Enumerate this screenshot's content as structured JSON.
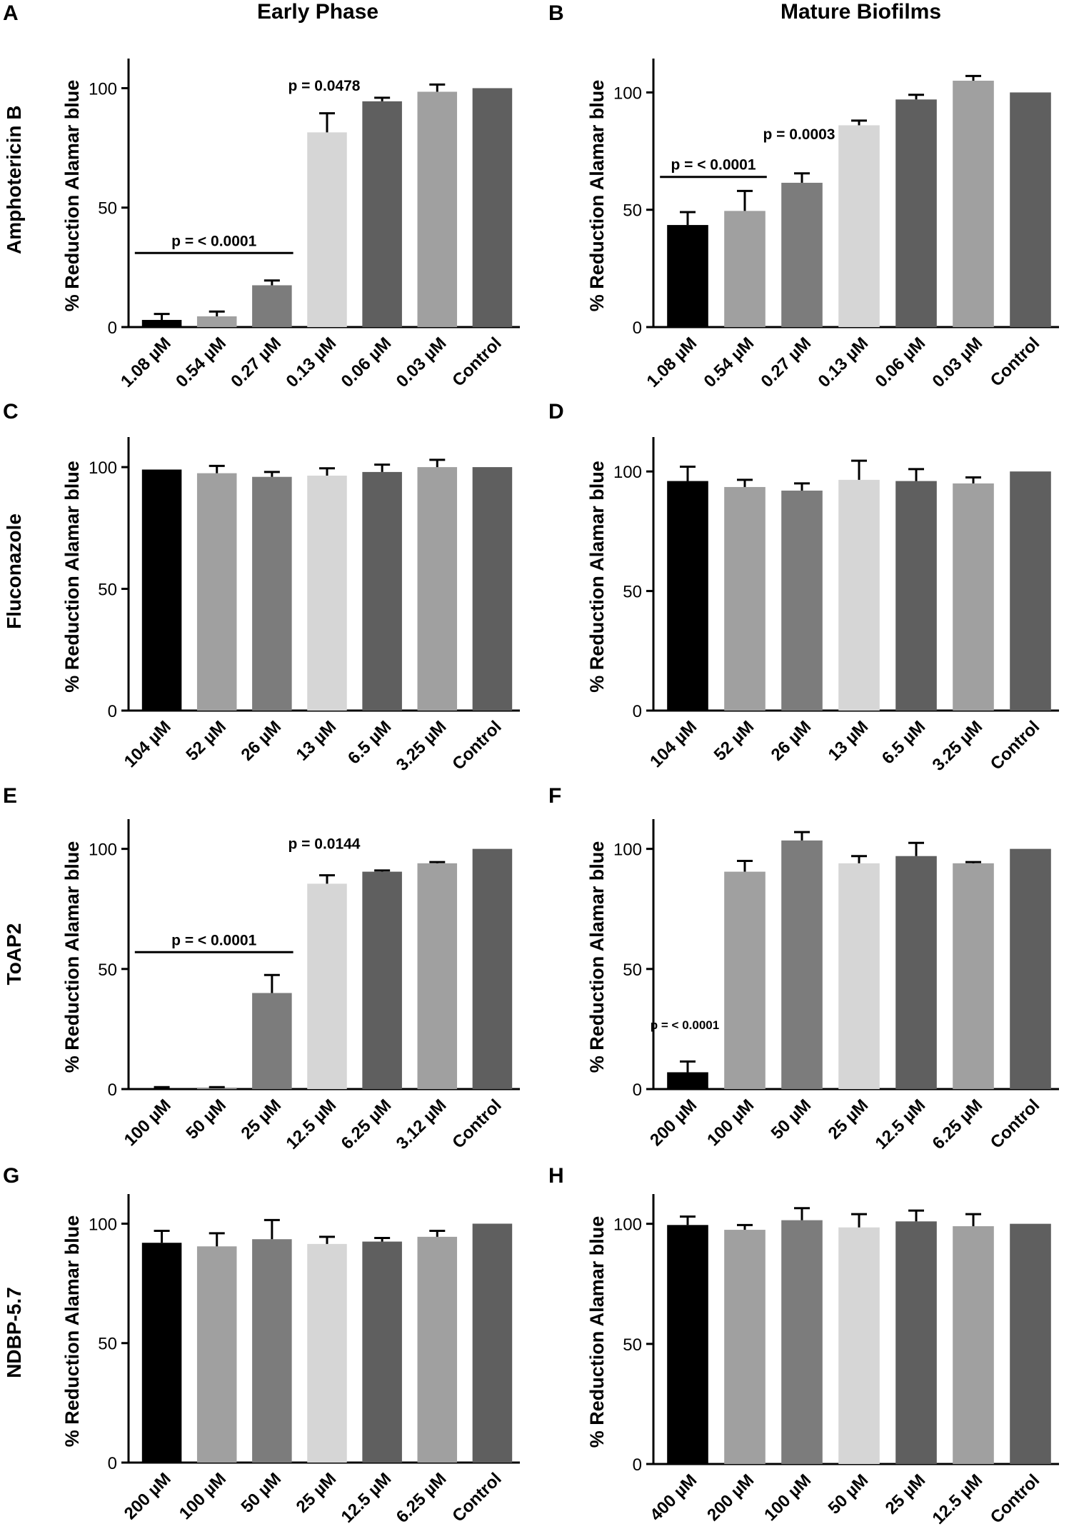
{
  "headers": {
    "left": "Early Phase",
    "right": "Mature Biofilms"
  },
  "row_labels": [
    "Amphotericin B",
    "Fluconazole",
    "ToAP2",
    "NDBP-5.7"
  ],
  "colors": {
    "black": "#000000",
    "light": "#d6d6d6",
    "mid": "#a0a0a0",
    "dark": "#7c7c7c",
    "darker": "#5f5f5f"
  },
  "chart_data": [
    {
      "panel": "A",
      "type": "bar",
      "ylabel": "% Reduction Alamar blue",
      "ylim": [
        0,
        110
      ],
      "yticks": [
        0,
        50,
        100
      ],
      "categories": [
        "1.08 µM",
        "0.54 µM",
        "0.27 µM",
        "0.13 µM",
        "0.06 µM",
        "0.03 µM",
        "Control"
      ],
      "values": [
        3,
        4.5,
        17.5,
        81.5,
        94.5,
        98.5,
        100
      ],
      "errors": [
        2.5,
        2,
        2,
        8,
        1.5,
        3,
        0
      ],
      "fills": [
        "#000000",
        "#a0a0a0",
        "#7c7c7c",
        "#d6d6d6",
        "#5f5f5f",
        "#a0a0a0",
        "#5f5f5f"
      ],
      "annotations": [
        {
          "text": "p = < 0.0001",
          "bar": true,
          "from": 0,
          "to": 2,
          "y": 31
        },
        {
          "text": "p = 0.0478",
          "bar": false,
          "from": 3,
          "to": 3,
          "y": 96
        }
      ]
    },
    {
      "panel": "B",
      "type": "bar",
      "ylabel": "% Reduction Alamar blue",
      "ylim": [
        0,
        112
      ],
      "yticks": [
        0,
        50,
        100
      ],
      "categories": [
        "1.08 µM",
        "0.54 µM",
        "0.27 µM",
        "0.13 µM",
        "0.06 µM",
        "0.03 µM",
        "Control"
      ],
      "values": [
        43.5,
        49.5,
        61.5,
        86,
        97,
        105,
        100
      ],
      "errors": [
        5.5,
        8.5,
        4,
        2,
        2,
        2,
        0
      ],
      "fills": [
        "#000000",
        "#a0a0a0",
        "#7c7c7c",
        "#d6d6d6",
        "#5f5f5f",
        "#a0a0a0",
        "#5f5f5f"
      ],
      "annotations": [
        {
          "text": "p = < 0.0001",
          "bar": true,
          "from": 0,
          "to": 1,
          "y": 64
        },
        {
          "text": "p = 0.0003",
          "bar": false,
          "from": 2,
          "to": 2,
          "y": 77
        }
      ]
    },
    {
      "panel": "C",
      "type": "bar",
      "ylabel": "% Reduction Alamar blue",
      "ylim": [
        0,
        110
      ],
      "yticks": [
        0,
        50,
        100
      ],
      "categories": [
        "104 µM",
        "52 µM",
        "26 µM",
        "13 µM",
        "6.5 µM",
        "3.25 µM",
        "Control"
      ],
      "values": [
        99,
        97.5,
        96,
        96.5,
        98,
        100,
        100
      ],
      "errors": [
        0,
        3,
        2,
        3,
        3,
        3,
        0
      ],
      "fills": [
        "#000000",
        "#a0a0a0",
        "#7c7c7c",
        "#d6d6d6",
        "#5f5f5f",
        "#a0a0a0",
        "#5f5f5f"
      ],
      "annotations": []
    },
    {
      "panel": "D",
      "type": "bar",
      "ylabel": "% Reduction Alamar blue",
      "ylim": [
        0,
        112
      ],
      "yticks": [
        0,
        50,
        100
      ],
      "categories": [
        "104 µM",
        "52 µM",
        "26 µM",
        "13 µM",
        "6.5 µM",
        "3.25 µM",
        "Control"
      ],
      "values": [
        96,
        93.5,
        92,
        96.5,
        96,
        95,
        100
      ],
      "errors": [
        6,
        3,
        3,
        8,
        5,
        2.5,
        0
      ],
      "fills": [
        "#000000",
        "#a0a0a0",
        "#7c7c7c",
        "#d6d6d6",
        "#5f5f5f",
        "#a0a0a0",
        "#5f5f5f"
      ],
      "annotations": []
    },
    {
      "panel": "E",
      "type": "bar",
      "ylabel": "% Reduction Alamar blue",
      "ylim": [
        0,
        110
      ],
      "yticks": [
        0,
        50,
        100
      ],
      "categories": [
        "100 µM",
        "50 µM",
        "25 µM",
        "12.5 µM",
        "6.25 µM",
        "3.12 µM",
        "Control"
      ],
      "values": [
        0.3,
        0.3,
        40,
        85.5,
        90.5,
        94,
        100
      ],
      "errors": [
        0.5,
        0.5,
        7.5,
        3.5,
        0.5,
        0.5,
        0
      ],
      "fills": [
        "#000000",
        "#a0a0a0",
        "#7c7c7c",
        "#d6d6d6",
        "#5f5f5f",
        "#a0a0a0",
        "#5f5f5f"
      ],
      "annotations": [
        {
          "text": "p = < 0.0001",
          "bar": true,
          "from": 0,
          "to": 2,
          "y": 57
        },
        {
          "text": "p = 0.0144",
          "bar": false,
          "from": 3,
          "to": 3,
          "y": 97
        }
      ]
    },
    {
      "panel": "F",
      "type": "bar",
      "ylabel": "% Reduction Alamar blue",
      "ylim": [
        0,
        110
      ],
      "yticks": [
        0,
        50,
        100
      ],
      "categories": [
        "200 µM",
        "100 µM",
        "50 µM",
        "25 µM",
        "12.5 µM",
        "6.25 µM",
        "Control"
      ],
      "values": [
        7,
        90.5,
        103.5,
        94,
        97,
        94,
        100
      ],
      "errors": [
        4.5,
        4.5,
        3.5,
        3,
        5.5,
        0.5,
        0
      ],
      "fills": [
        "#000000",
        "#a0a0a0",
        "#7c7c7c",
        "#d6d6d6",
        "#5f5f5f",
        "#a0a0a0",
        "#5f5f5f"
      ],
      "annotations": [
        {
          "text": "p = < 0.0001",
          "bar": false,
          "from": 0,
          "to": 0,
          "y": 22,
          "small": true
        }
      ]
    },
    {
      "panel": "G",
      "type": "bar",
      "ylabel": "% Reduction Alamar blue",
      "ylim": [
        0,
        110
      ],
      "yticks": [
        0,
        50,
        100
      ],
      "categories": [
        "200 µM",
        "100 µM",
        "50 µM",
        "25 µM",
        "12.5 µM",
        "6.25 µM",
        "Control"
      ],
      "values": [
        92,
        90.5,
        93.5,
        91.5,
        92.5,
        94.5,
        100
      ],
      "errors": [
        5,
        5.5,
        8,
        3,
        1.5,
        2.5,
        0
      ],
      "fills": [
        "#000000",
        "#a0a0a0",
        "#7c7c7c",
        "#d6d6d6",
        "#5f5f5f",
        "#a0a0a0",
        "#5f5f5f"
      ],
      "annotations": []
    },
    {
      "panel": "H",
      "type": "bar",
      "ylabel": "% Reduction Alamar blue",
      "ylim": [
        0,
        110
      ],
      "yticks": [
        0,
        50,
        100
      ],
      "categories": [
        "400 µM",
        "200 µM",
        "100 µM",
        "50 µM",
        "25 µM",
        "12.5 µM",
        "Control"
      ],
      "values": [
        99.5,
        97.5,
        101.5,
        98.5,
        101,
        99,
        100
      ],
      "errors": [
        3.5,
        2,
        5,
        5.5,
        4.5,
        5,
        0
      ],
      "fills": [
        "#000000",
        "#a0a0a0",
        "#7c7c7c",
        "#d6d6d6",
        "#5f5f5f",
        "#a0a0a0",
        "#5f5f5f"
      ],
      "annotations": []
    }
  ]
}
